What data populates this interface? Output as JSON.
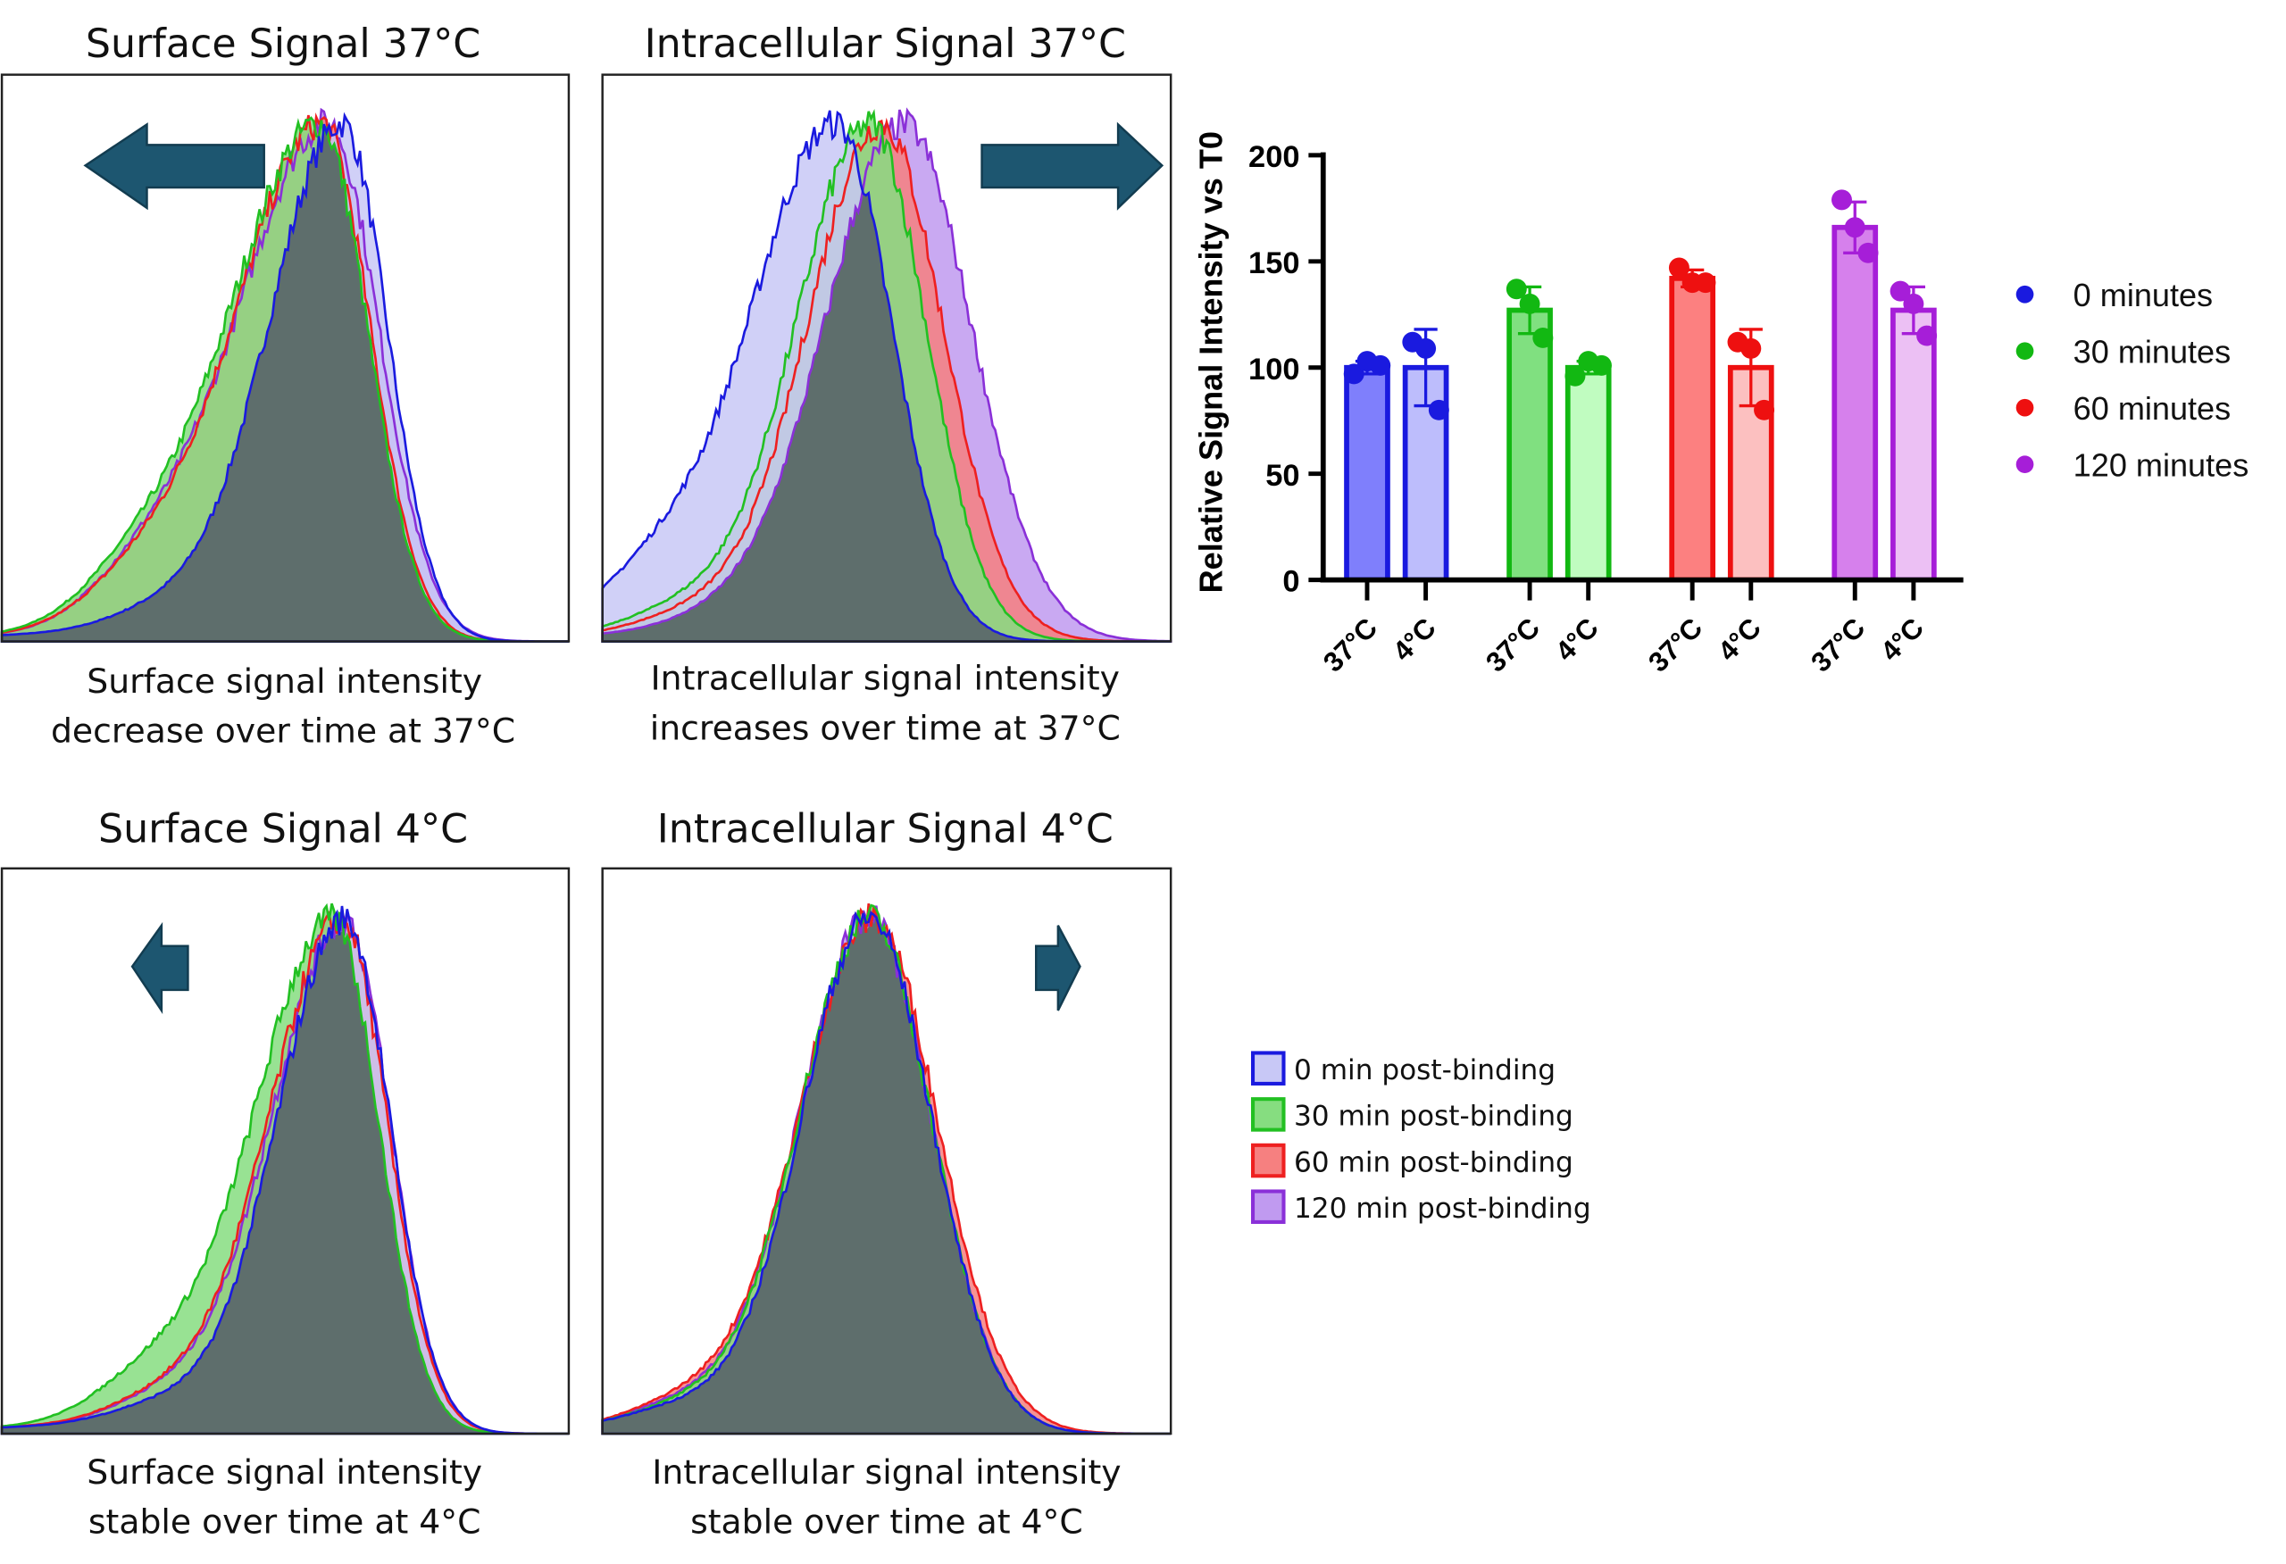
{
  "panels": [
    {
      "title": "Surface Signal 37°C",
      "caption": [
        "Surface signal intensity",
        "decrease over time at 37°C"
      ],
      "arrow": "left"
    },
    {
      "title": "Intracellular Signal 37°C",
      "caption": [
        "Intracellular signal intensity",
        "increases over time at 37°C"
      ],
      "arrow": "right"
    },
    {
      "title": "Surface Signal 4°C",
      "caption": [
        "Surface signal intensity",
        "stable over time at 4°C"
      ],
      "arrow": "left"
    },
    {
      "title": "Intracellular Signal 4°C",
      "caption": [
        "Intracellular signal intensity",
        "stable over time at 4°C"
      ],
      "arrow": "right"
    }
  ],
  "histogram_legend": [
    {
      "label": "0 min post-binding",
      "stroke": "#1a1adf",
      "fill": "#c8c8f6"
    },
    {
      "label": "30 min post-binding",
      "stroke": "#22c022",
      "fill": "#86dd80"
    },
    {
      "label": "60 min post-binding",
      "stroke": "#ee2020",
      "fill": "#f68080"
    },
    {
      "label": "120 min post-binding",
      "stroke": "#8a30d8",
      "fill": "#c09af0"
    }
  ],
  "colors": {
    "arrow": "#1d5670",
    "overlap": "#5e6e6c"
  },
  "chart_data": {
    "type": "bar",
    "ylabel": "Relative Signal Intensity vs T0",
    "ylim": [
      0,
      200
    ],
    "yticks": [
      "0",
      "50",
      "100",
      "150",
      "200"
    ],
    "legend_position": "right",
    "groups": [
      {
        "name": "0 minutes",
        "color": "#1a1adf",
        "bars": [
          {
            "label": "37°C",
            "mean": 100,
            "error": 3,
            "fill": "#7f7ffc",
            "points": [
              97,
              103,
              101
            ]
          },
          {
            "label": "4°C",
            "mean": 100,
            "error": 18,
            "fill": "#bdbdfc",
            "points": [
              112,
              109,
              80
            ]
          }
        ]
      },
      {
        "name": "30 minutes",
        "color": "#12b812",
        "bars": [
          {
            "label": "37°C",
            "mean": 127,
            "error": 11,
            "fill": "#80e080",
            "points": [
              137,
              130,
              114
            ]
          },
          {
            "label": "4°C",
            "mean": 100,
            "error": 3,
            "fill": "#c0fcc0",
            "points": [
              96,
              103,
              101
            ]
          }
        ]
      },
      {
        "name": "60 minutes",
        "color": "#ee1010",
        "bars": [
          {
            "label": "37°C",
            "mean": 142,
            "error": 4,
            "fill": "#fc8080",
            "points": [
              147,
              140,
              140
            ]
          },
          {
            "label": "4°C",
            "mean": 100,
            "error": 18,
            "fill": "#fcc0c0",
            "points": [
              112,
              109,
              80
            ]
          }
        ]
      },
      {
        "name": "120 minutes",
        "color": "#a61ed8",
        "bars": [
          {
            "label": "37°C",
            "mean": 166,
            "error": 12,
            "fill": "#d680ec",
            "points": [
              179,
              166,
              154
            ]
          },
          {
            "label": "4°C",
            "mean": 127,
            "error": 11,
            "fill": "#ecc0f4",
            "points": [
              136,
              130,
              115
            ]
          }
        ]
      }
    ]
  }
}
